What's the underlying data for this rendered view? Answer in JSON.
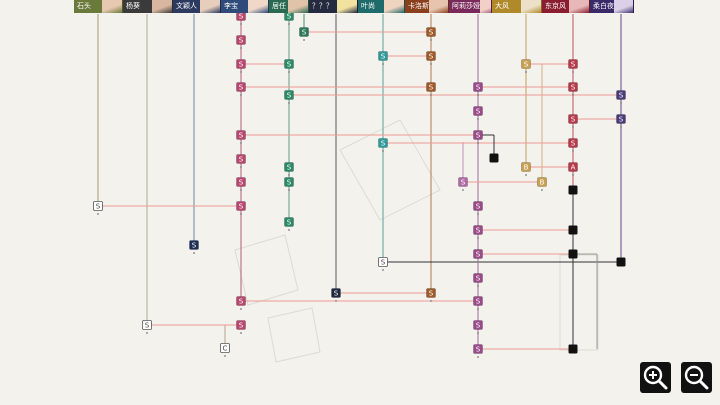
{
  "characters": [
    {
      "name": "石头",
      "color": "#6a7a3a",
      "portrait": "#e8c8b0"
    },
    {
      "name": "杨葵",
      "color": "#3a3a3a",
      "portrait": "#d9b6a0"
    },
    {
      "name": "文颖人",
      "color": "#2d3a60",
      "portrait": "#e7cdbb"
    },
    {
      "name": "李宝",
      "color": "#2f4b7a",
      "portrait": "#f0d8c8"
    },
    {
      "name": "居任",
      "color": "#2a6a50",
      "portrait": "#e0c3a8"
    },
    {
      "name": "？？？",
      "color": "#262a3e",
      "portrait": "#f1e2a0"
    },
    {
      "name": "叶尚",
      "color": "#1f6a6a",
      "portrait": "#efd4c0"
    },
    {
      "name": "卡洛斯",
      "color": "#8a3f1d",
      "portrait": "#e6c4ad"
    },
    {
      "name": "阿莉莎娅",
      "color": "#7a2a5a",
      "portrait": "#f2d0c8"
    },
    {
      "name": "大风",
      "color": "#b08a2a",
      "portrait": "#ede0c8"
    },
    {
      "name": "东京风",
      "color": "#8a1e30",
      "portrait": "#e8b8b8"
    },
    {
      "name": "柔白夜",
      "color": "#3a2a6a",
      "portrait": "#dcd0e8"
    }
  ],
  "nodes": {
    "story_label": "S",
    "branch_label": "B",
    "a_label": "A",
    "c_label": "C"
  },
  "colors": {
    "background": "#f3f2ec",
    "link_line": "#f09a94",
    "node_black": "#111111"
  },
  "zoom": {
    "zoom_in_icon": "zoom-in-icon",
    "zoom_out_icon": "zoom-out-icon"
  }
}
